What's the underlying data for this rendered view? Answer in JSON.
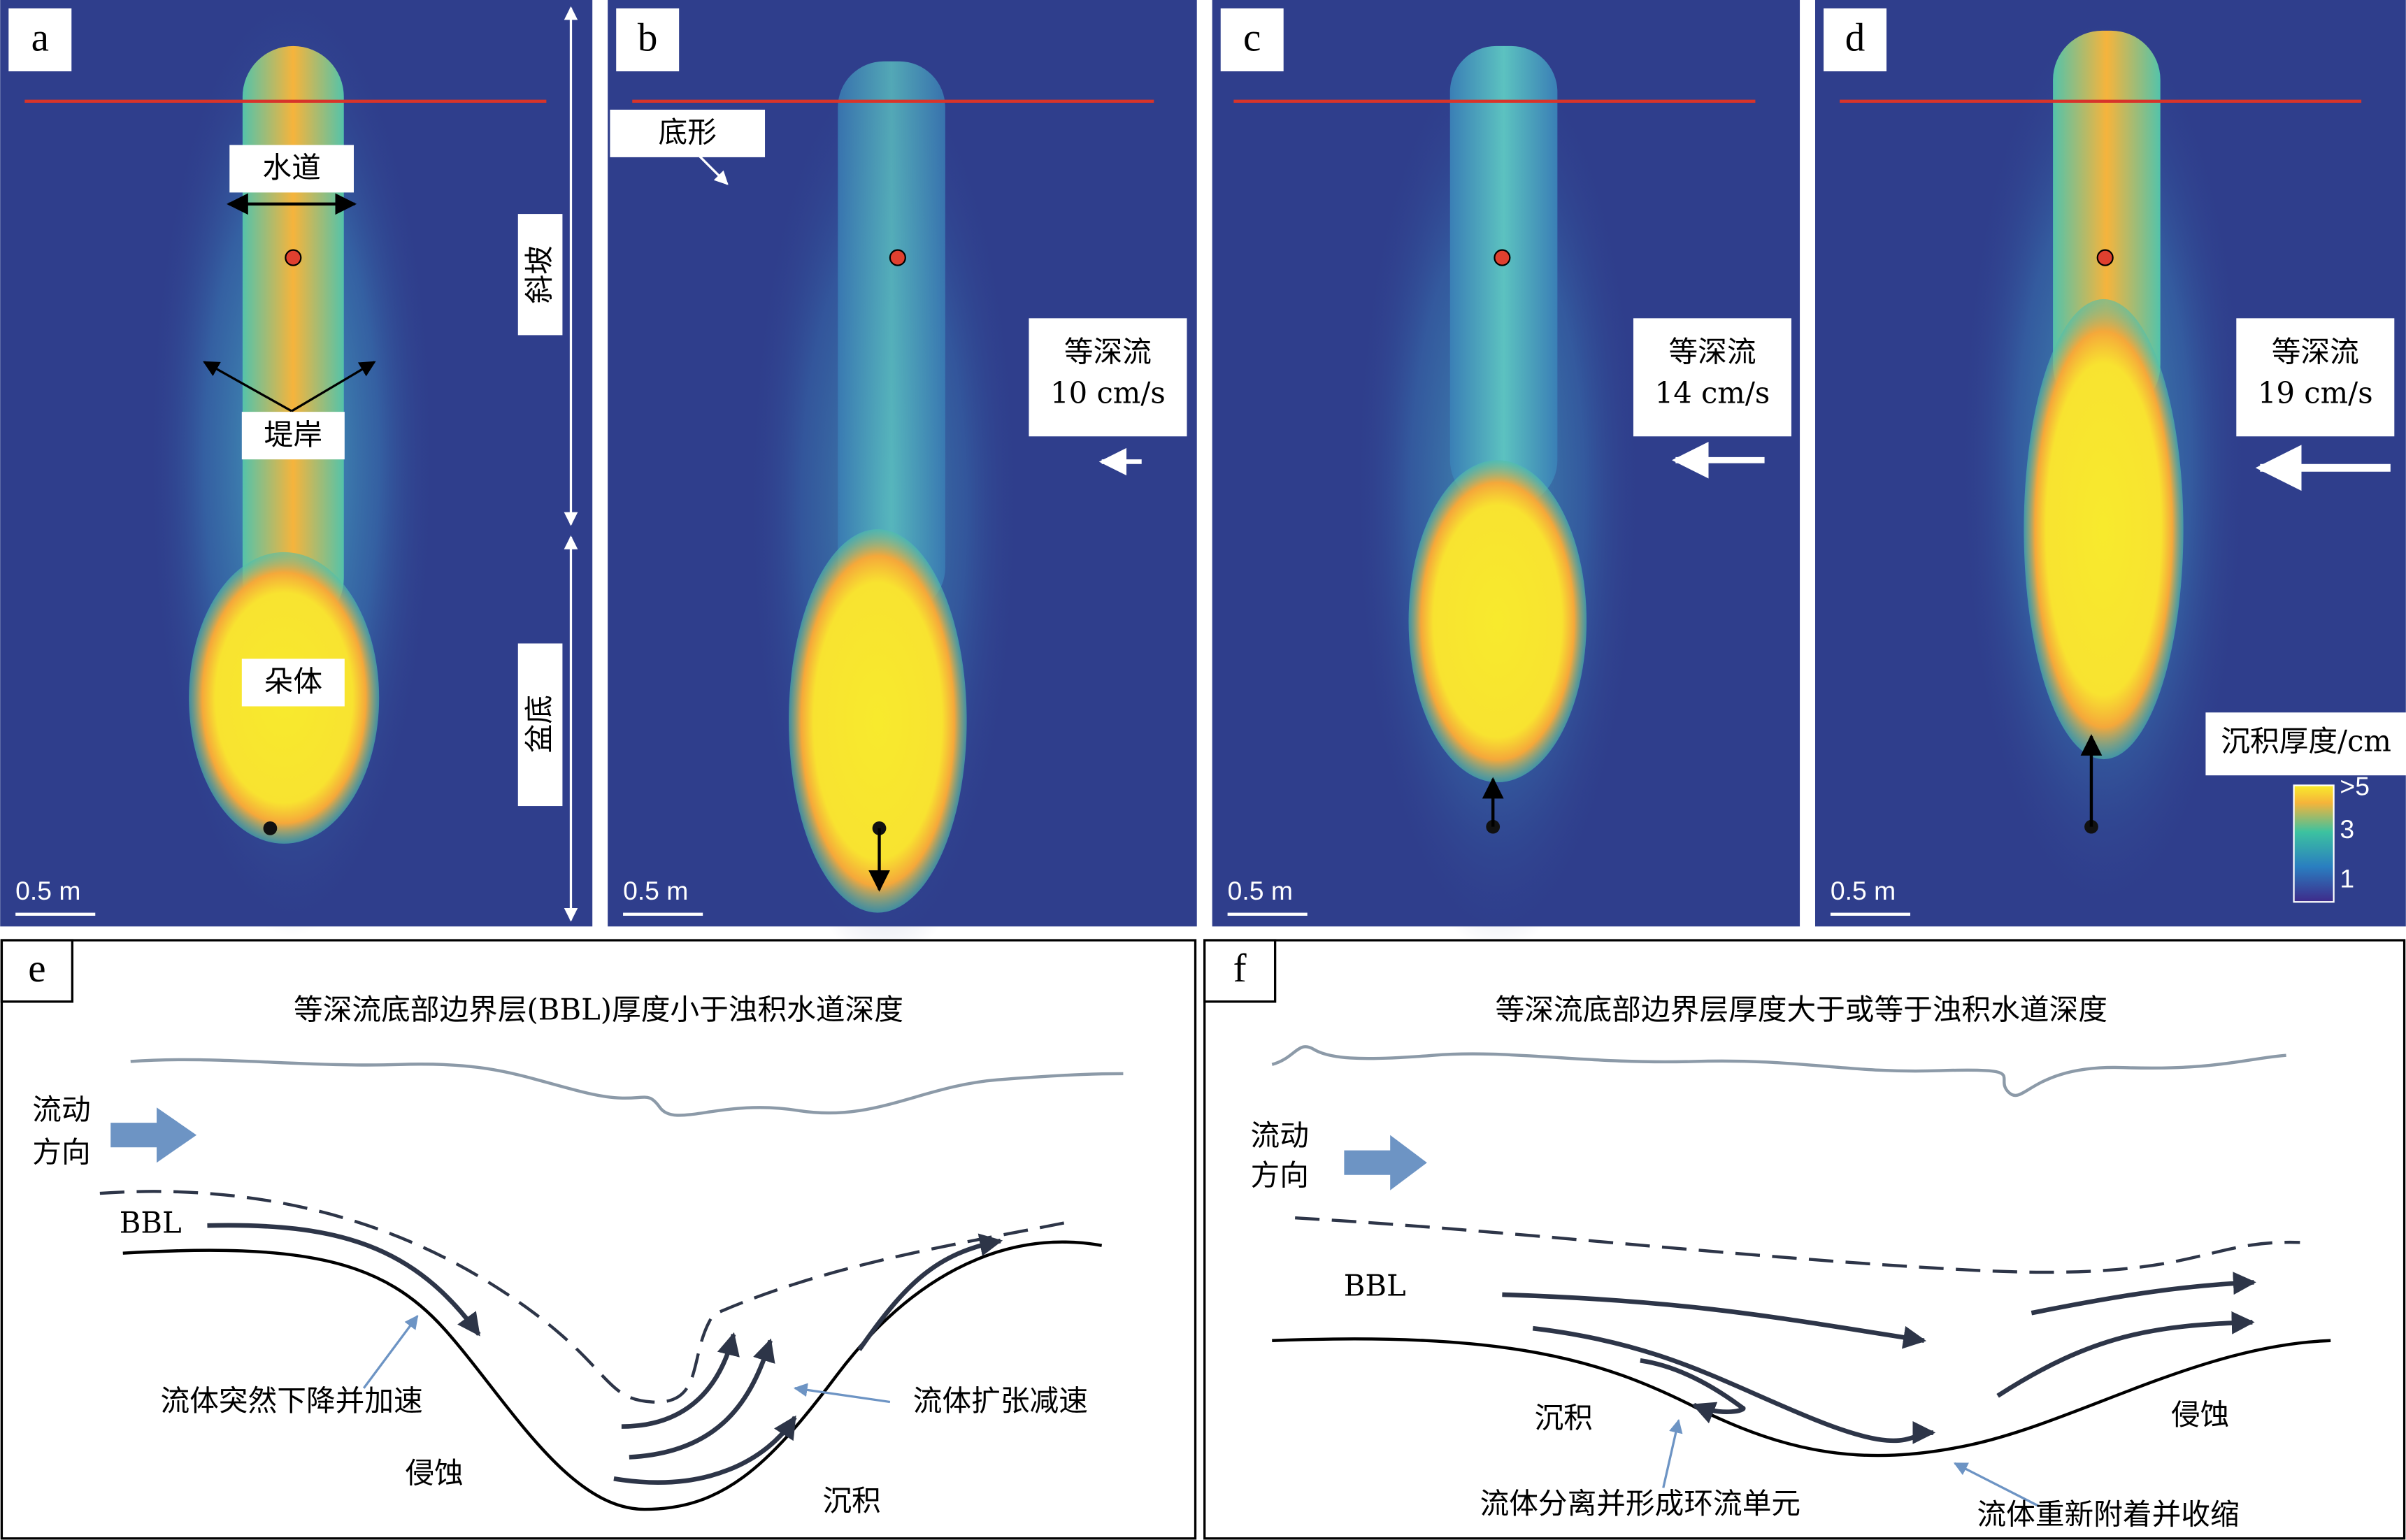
{
  "panels": [
    {
      "label": "a",
      "channel": "水道",
      "levee": "堤岸",
      "lobe": "朵体",
      "slope": "斜坡",
      "basin": "盆底",
      "scale": "0.5 m"
    },
    {
      "label": "b",
      "bedform": "底形",
      "current": "等深流",
      "speed": "10 cm/s",
      "scale": "0.5 m"
    },
    {
      "label": "c",
      "current": "等深流",
      "speed": "14 cm/s",
      "scale": "0.5 m"
    },
    {
      "label": "d",
      "current": "等深流",
      "speed": "19 cm/s",
      "scale": "0.5 m",
      "legend": {
        "title": "沉积厚度/cm",
        "ticks": [
          ">5",
          "3",
          "1"
        ]
      }
    }
  ],
  "schematics": [
    {
      "label": "e",
      "title": "等深流底部边界层(BBL)厚度小于浊积水道深度",
      "flow": [
        "流动",
        "方向"
      ],
      "bbl": "BBL",
      "notes": [
        "流体突然下降并加速",
        "流体扩张减速",
        "侵蚀",
        "沉积"
      ]
    },
    {
      "label": "f",
      "title": "等深流底部边界层厚度大于或等于浊积水道深度",
      "flow": [
        "流动",
        "方向"
      ],
      "bbl": "BBL",
      "notes": [
        "沉积",
        "侵蚀",
        "流体分离并形成环流单元",
        "流体重新附着并收缩"
      ]
    }
  ]
}
